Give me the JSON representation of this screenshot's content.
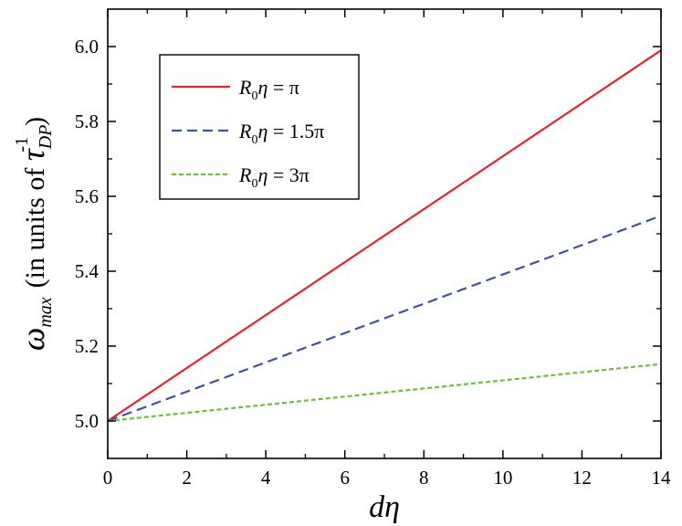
{
  "chart_data": {
    "type": "line",
    "xlabel": "dη",
    "ylabel": {
      "symbol": "ω",
      "subscript": "max",
      "text": "(in units of ",
      "tau": "τ",
      "tau_sub": "DP",
      "tau_sup": "-1",
      "close": ")"
    },
    "xlim": [
      0,
      14
    ],
    "ylim": [
      4.9,
      6.1
    ],
    "xticks": [
      0,
      2,
      4,
      6,
      8,
      10,
      12,
      14
    ],
    "yticks": [
      5.0,
      5.2,
      5.4,
      5.6,
      5.8,
      6.0
    ],
    "ytick_labels": [
      "5.0",
      "5.2",
      "5.4",
      "5.6",
      "5.8",
      "6.0"
    ],
    "grid": false,
    "legend_position": "top-left",
    "series": [
      {
        "name": "R0η = π",
        "label_parts": {
          "R": "R",
          "sub": "0",
          "eta": "η",
          "rest": " = π"
        },
        "color": "#e8212a",
        "dash": "solid",
        "x": [
          0,
          14
        ],
        "y": [
          5.0,
          5.99
        ]
      },
      {
        "name": "R0η = 1.5π",
        "label_parts": {
          "R": "R",
          "sub": "0",
          "eta": "η",
          "rest": " = 1.5π"
        },
        "color": "#3b54a0",
        "dash": "dashed",
        "x": [
          0,
          14
        ],
        "y": [
          5.0,
          5.548
        ]
      },
      {
        "name": "R0η = 3π",
        "label_parts": {
          "R": "R",
          "sub": "0",
          "eta": "η",
          "rest": " = 3π"
        },
        "color": "#6cbf3a",
        "dash": "dotted",
        "x": [
          0,
          14
        ],
        "y": [
          5.0,
          5.152
        ]
      }
    ]
  }
}
